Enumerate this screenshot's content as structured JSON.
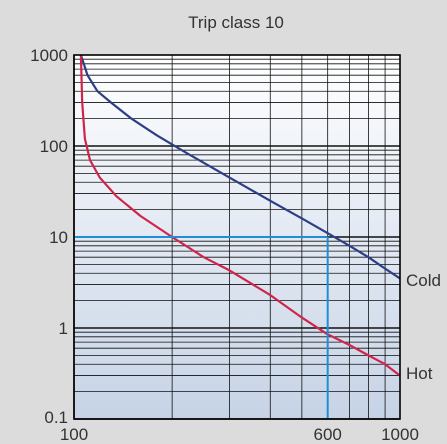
{
  "chart_data": {
    "type": "line",
    "title": "Trip class 10",
    "xlabel": "",
    "ylabel": "",
    "x_scale": "log",
    "y_scale": "log",
    "xlim": [
      100,
      1000
    ],
    "ylim": [
      0.1,
      1000
    ],
    "x_tick_labels": [
      {
        "value": 100,
        "label": "100"
      },
      {
        "value": 600,
        "label": "600"
      },
      {
        "value": 1000,
        "label": "1000"
      }
    ],
    "y_tick_labels": [
      {
        "value": 1000,
        "label": "1000"
      },
      {
        "value": 100,
        "label": "100"
      },
      {
        "value": 10,
        "label": "10"
      },
      {
        "value": 1,
        "label": "1"
      },
      {
        "value": 0.1,
        "label": "0.1"
      }
    ],
    "grid": true,
    "series": [
      {
        "name": "Cold",
        "color": "#2c3f86",
        "x": [
          105,
          110,
          118,
          130,
          150,
          180,
          220,
          300,
          400,
          500,
          600,
          700,
          800,
          900,
          1000
        ],
        "y": [
          1000,
          600,
          400,
          300,
          200,
          130,
          85,
          45,
          25,
          16,
          11,
          8,
          6,
          4.5,
          3.5
        ]
      },
      {
        "name": "Hot",
        "color": "#d0254a",
        "x": [
          105,
          106,
          108,
          112,
          120,
          135,
          160,
          200,
          250,
          300,
          400,
          500,
          600,
          700,
          800,
          900,
          1000
        ],
        "y": [
          1000,
          300,
          120,
          70,
          45,
          28,
          17,
          10,
          6,
          4.3,
          2.3,
          1.3,
          0.85,
          0.65,
          0.5,
          0.4,
          0.3
        ]
      }
    ],
    "reference_lines": {
      "color": "#1e8fd6",
      "x": 600,
      "y": 10
    }
  }
}
